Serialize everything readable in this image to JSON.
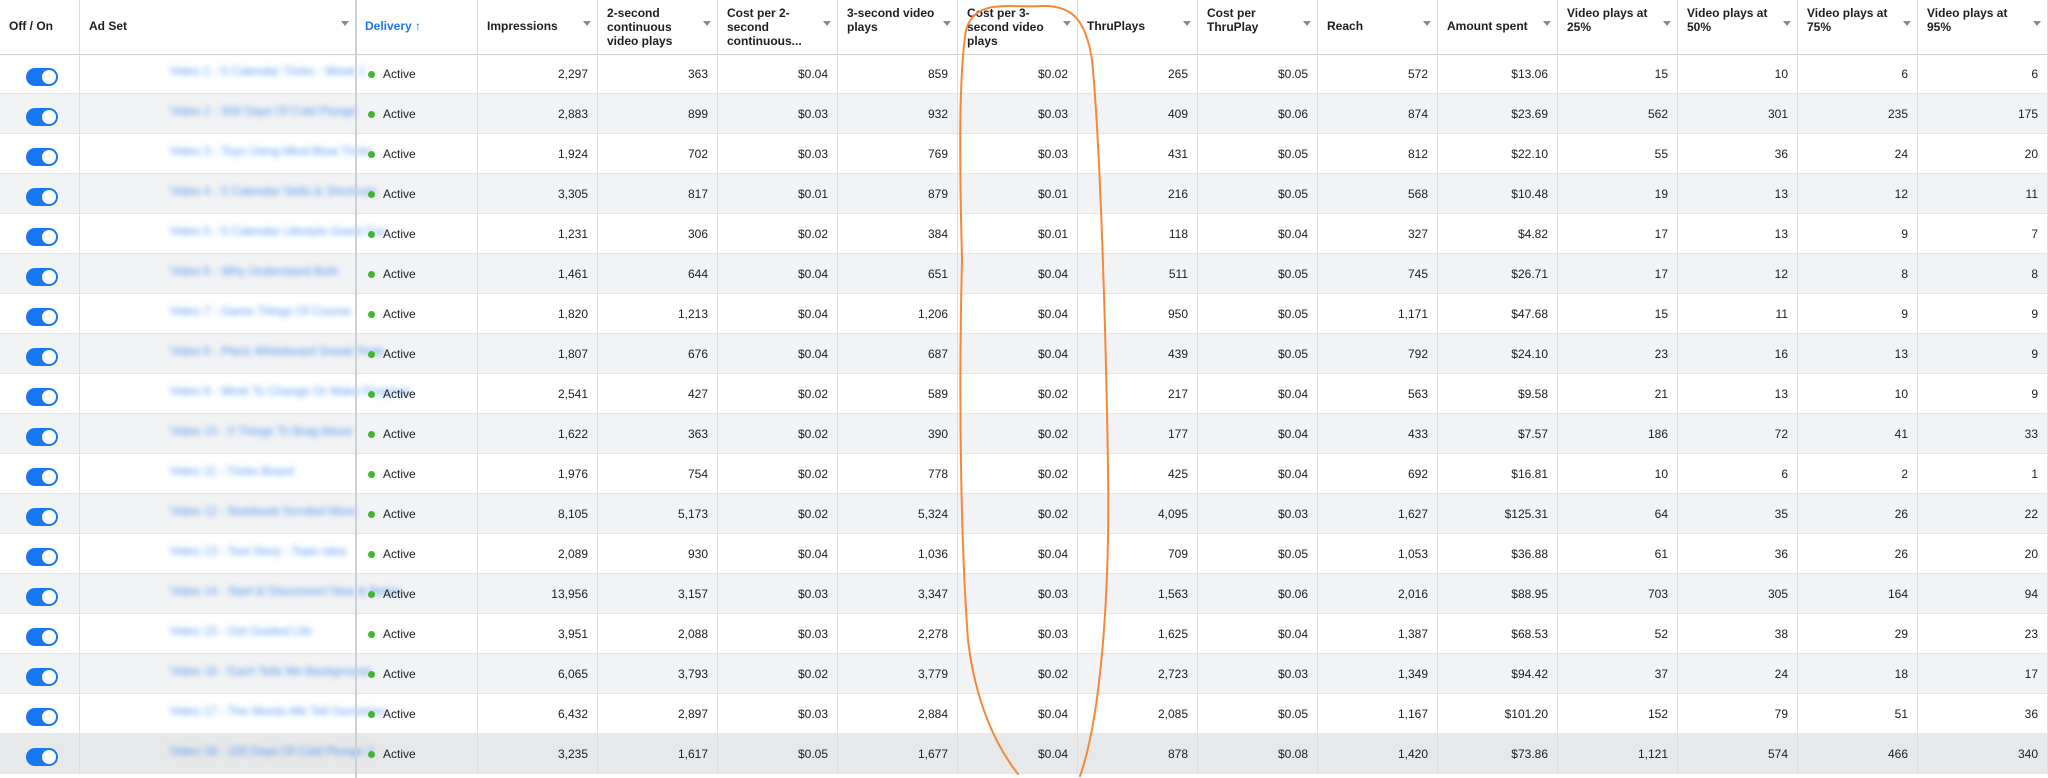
{
  "columns": [
    {
      "key": "toggle",
      "label": "Off / On"
    },
    {
      "key": "adset",
      "label": "Ad Set"
    },
    {
      "key": "delivery",
      "label": "Delivery ↑"
    },
    {
      "key": "impressions",
      "label": "Impressions"
    },
    {
      "key": "two_sec",
      "label": "2-second continuous video plays"
    },
    {
      "key": "cost_two_sec",
      "label": "Cost per 2-second continuous..."
    },
    {
      "key": "three_sec",
      "label": "3-second video plays"
    },
    {
      "key": "cost_three_sec",
      "label": "Cost per 3-second video plays"
    },
    {
      "key": "thruplays",
      "label": "ThruPlays"
    },
    {
      "key": "cost_thruplay",
      "label": "Cost per ThruPlay"
    },
    {
      "key": "reach",
      "label": "Reach"
    },
    {
      "key": "amount",
      "label": "Amount spent"
    },
    {
      "key": "p25",
      "label": "Video plays at 25%"
    },
    {
      "key": "p50",
      "label": "Video plays at 50%"
    },
    {
      "key": "p75",
      "label": "Video plays at 75%"
    },
    {
      "key": "p95",
      "label": "Video plays at 95%"
    }
  ],
  "status_label": "Active",
  "colors": {
    "accent": "#1877f2",
    "status": "#42b72a",
    "annotation": "#f5893a"
  },
  "rows": [
    {
      "adset": "Video 1 - 5 Calendar Tricks - Week 1",
      "impressions": "2,297",
      "two_sec": "363",
      "cost_two_sec": "$0.04",
      "three_sec": "859",
      "cost_three_sec": "$0.02",
      "thruplays": "265",
      "cost_thruplay": "$0.05",
      "reach": "572",
      "amount": "$13.06",
      "p25": "15",
      "p50": "10",
      "p75": "6",
      "p95": "6"
    },
    {
      "adset": "Video 2 - 500 Days Of Cold Plunge",
      "impressions": "2,883",
      "two_sec": "899",
      "cost_two_sec": "$0.03",
      "three_sec": "932",
      "cost_three_sec": "$0.03",
      "thruplays": "409",
      "cost_thruplay": "$0.06",
      "reach": "874",
      "amount": "$23.69",
      "p25": "562",
      "p50": "301",
      "p75": "235",
      "p95": "175"
    },
    {
      "adset": "Video 3 - Toys Using Mind Blow Tricks",
      "impressions": "1,924",
      "two_sec": "702",
      "cost_two_sec": "$0.03",
      "three_sec": "769",
      "cost_three_sec": "$0.03",
      "thruplays": "431",
      "cost_thruplay": "$0.05",
      "reach": "812",
      "amount": "$22.10",
      "p25": "55",
      "p50": "36",
      "p75": "24",
      "p95": "20"
    },
    {
      "adset": "Video 4 - 5 Calendar Skills & Shortcuts",
      "impressions": "3,305",
      "two_sec": "817",
      "cost_two_sec": "$0.01",
      "three_sec": "879",
      "cost_three_sec": "$0.01",
      "thruplays": "216",
      "cost_thruplay": "$0.05",
      "reach": "568",
      "amount": "$10.48",
      "p25": "19",
      "p50": "13",
      "p75": "12",
      "p95": "11"
    },
    {
      "adset": "Video 5 - 5 Calendar Lifestyle Guest Cut",
      "impressions": "1,231",
      "two_sec": "306",
      "cost_two_sec": "$0.02",
      "three_sec": "384",
      "cost_three_sec": "$0.01",
      "thruplays": "118",
      "cost_thruplay": "$0.04",
      "reach": "327",
      "amount": "$4.82",
      "p25": "17",
      "p50": "13",
      "p75": "9",
      "p95": "7"
    },
    {
      "adset": "Video 6 - Why Understand Both",
      "impressions": "1,461",
      "two_sec": "644",
      "cost_two_sec": "$0.04",
      "three_sec": "651",
      "cost_three_sec": "$0.04",
      "thruplays": "511",
      "cost_thruplay": "$0.05",
      "reach": "745",
      "amount": "$26.71",
      "p25": "17",
      "p50": "12",
      "p75": "8",
      "p95": "8"
    },
    {
      "adset": "Video 7 - Game Things Of Course",
      "impressions": "1,820",
      "two_sec": "1,213",
      "cost_two_sec": "$0.04",
      "three_sec": "1,206",
      "cost_three_sec": "$0.04",
      "thruplays": "950",
      "cost_thruplay": "$0.05",
      "reach": "1,171",
      "amount": "$47.68",
      "p25": "15",
      "p50": "11",
      "p75": "9",
      "p95": "9"
    },
    {
      "adset": "Video 8 - Plans Whiteboard Sneak Peek",
      "impressions": "1,807",
      "two_sec": "676",
      "cost_two_sec": "$0.04",
      "three_sec": "687",
      "cost_three_sec": "$0.04",
      "thruplays": "439",
      "cost_thruplay": "$0.05",
      "reach": "792",
      "amount": "$24.10",
      "p25": "23",
      "p50": "16",
      "p75": "13",
      "p95": "9"
    },
    {
      "adset": "Video 9 - Work To Change Or Make Progress",
      "impressions": "2,541",
      "two_sec": "427",
      "cost_two_sec": "$0.02",
      "three_sec": "589",
      "cost_three_sec": "$0.02",
      "thruplays": "217",
      "cost_thruplay": "$0.04",
      "reach": "563",
      "amount": "$9.58",
      "p25": "21",
      "p50": "13",
      "p75": "10",
      "p95": "9"
    },
    {
      "adset": "Video 10 - 5 Things To Brag About",
      "impressions": "1,622",
      "two_sec": "363",
      "cost_two_sec": "$0.02",
      "three_sec": "390",
      "cost_three_sec": "$0.02",
      "thruplays": "177",
      "cost_thruplay": "$0.04",
      "reach": "433",
      "amount": "$7.57",
      "p25": "186",
      "p50": "72",
      "p75": "41",
      "p95": "33"
    },
    {
      "adset": "Video 11 - Tricks Board",
      "impressions": "1,976",
      "two_sec": "754",
      "cost_two_sec": "$0.02",
      "three_sec": "778",
      "cost_three_sec": "$0.02",
      "thruplays": "425",
      "cost_thruplay": "$0.04",
      "reach": "692",
      "amount": "$16.81",
      "p25": "10",
      "p50": "6",
      "p75": "2",
      "p95": "1"
    },
    {
      "adset": "Video 12 - Notebook Scrolled More",
      "impressions": "8,105",
      "two_sec": "5,173",
      "cost_two_sec": "$0.02",
      "three_sec": "5,324",
      "cost_three_sec": "$0.02",
      "thruplays": "4,095",
      "cost_thruplay": "$0.03",
      "reach": "1,627",
      "amount": "$125.31",
      "p25": "64",
      "p50": "35",
      "p75": "26",
      "p95": "22"
    },
    {
      "adset": "Video 13 - Tool Story - Topic Idea",
      "impressions": "2,089",
      "two_sec": "930",
      "cost_two_sec": "$0.04",
      "three_sec": "1,036",
      "cost_three_sec": "$0.04",
      "thruplays": "709",
      "cost_thruplay": "$0.05",
      "reach": "1,053",
      "amount": "$36.88",
      "p25": "61",
      "p50": "36",
      "p75": "26",
      "p95": "20"
    },
    {
      "adset": "Video 14 - Start & Disconnect New & Better",
      "impressions": "13,956",
      "two_sec": "3,157",
      "cost_two_sec": "$0.03",
      "three_sec": "3,347",
      "cost_three_sec": "$0.03",
      "thruplays": "1,563",
      "cost_thruplay": "$0.06",
      "reach": "2,016",
      "amount": "$88.95",
      "p25": "703",
      "p50": "305",
      "p75": "164",
      "p95": "94"
    },
    {
      "adset": "Video 15 - Get Guided Life",
      "impressions": "3,951",
      "two_sec": "2,088",
      "cost_two_sec": "$0.03",
      "three_sec": "2,278",
      "cost_three_sec": "$0.03",
      "thruplays": "1,625",
      "cost_thruplay": "$0.04",
      "reach": "1,387",
      "amount": "$68.53",
      "p25": "52",
      "p50": "38",
      "p75": "29",
      "p95": "23"
    },
    {
      "adset": "Video 16 - Each Tells Me Background",
      "impressions": "6,065",
      "two_sec": "3,793",
      "cost_two_sec": "$0.02",
      "three_sec": "3,779",
      "cost_three_sec": "$0.02",
      "thruplays": "2,723",
      "cost_thruplay": "$0.03",
      "reach": "1,349",
      "amount": "$94.42",
      "p25": "37",
      "p50": "24",
      "p75": "18",
      "p95": "17"
    },
    {
      "adset": "Video 17 - The Words We Tell Ourselves",
      "impressions": "6,432",
      "two_sec": "2,897",
      "cost_two_sec": "$0.03",
      "three_sec": "2,884",
      "cost_three_sec": "$0.04",
      "thruplays": "2,085",
      "cost_thruplay": "$0.05",
      "reach": "1,167",
      "amount": "$101.20",
      "p25": "152",
      "p50": "79",
      "p75": "51",
      "p95": "36"
    },
    {
      "adset": "Video 18 - 100 Days Of Cold Plunge 2",
      "impressions": "3,235",
      "two_sec": "1,617",
      "cost_two_sec": "$0.05",
      "three_sec": "1,677",
      "cost_three_sec": "$0.04",
      "thruplays": "878",
      "cost_thruplay": "$0.08",
      "reach": "1,420",
      "amount": "$73.86",
      "p25": "1,121",
      "p50": "574",
      "p75": "466",
      "p95": "340"
    }
  ]
}
